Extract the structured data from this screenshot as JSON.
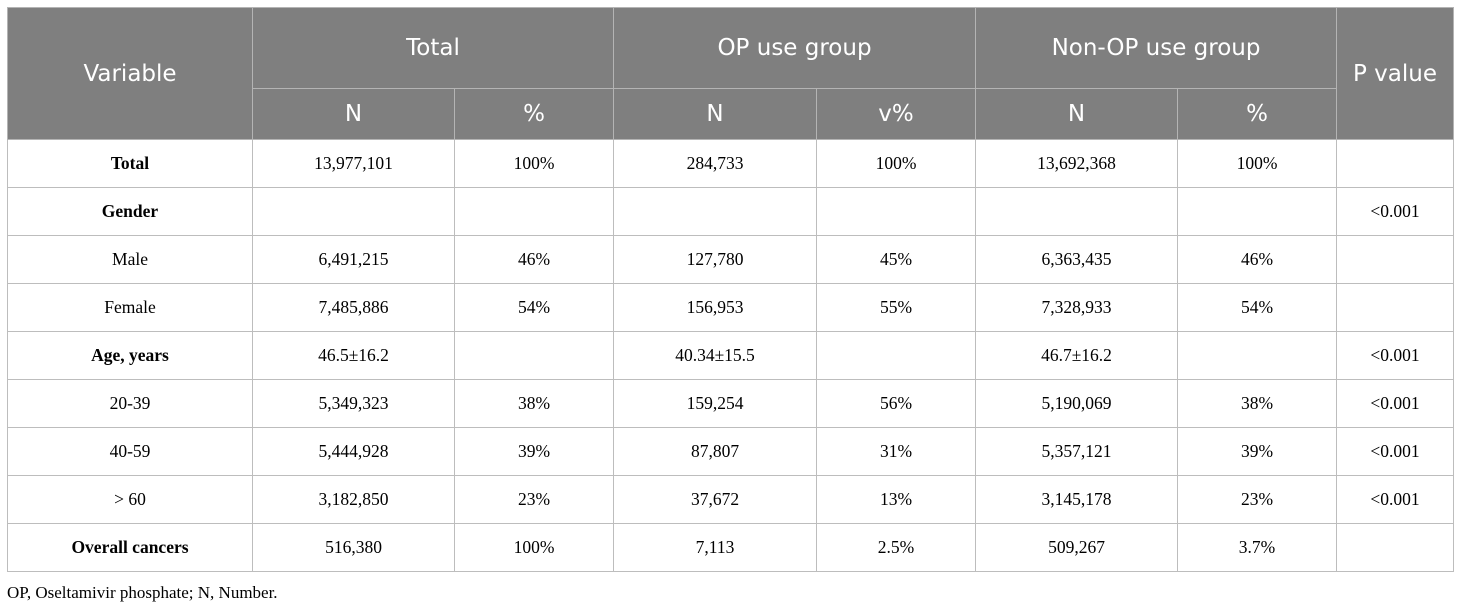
{
  "header": {
    "variable": "Variable",
    "total": "Total",
    "op_use": "OP use group",
    "non_op_use": "Non-OP use group",
    "p_value": "P value",
    "sub": [
      "N",
      "%",
      "N",
      "v%",
      "N",
      "%"
    ]
  },
  "rows": [
    {
      "label": "Total",
      "cells": [
        "13,977,101",
        "100%",
        "284,733",
        "100%",
        "13,692,368",
        "100%",
        ""
      ]
    },
    {
      "label": "Gender",
      "cells": [
        "",
        "",
        "",
        "",
        "",
        "",
        "<0.001"
      ]
    },
    {
      "label": "Male",
      "cells": [
        "6,491,215",
        "46%",
        "127,780",
        "45%",
        "6,363,435",
        "46%",
        ""
      ]
    },
    {
      "label": "Female",
      "cells": [
        "7,485,886",
        "54%",
        "156,953",
        "55%",
        "7,328,933",
        "54%",
        ""
      ]
    },
    {
      "label": "Age, years",
      "cells": [
        "46.5±16.2",
        "",
        "40.34±15.5",
        "",
        "46.7±16.2",
        "",
        "<0.001"
      ]
    },
    {
      "label": "20-39",
      "cells": [
        "5,349,323",
        "38%",
        "159,254",
        "56%",
        "5,190,069",
        "38%",
        "<0.001"
      ]
    },
    {
      "label": "40-59",
      "cells": [
        "5,444,928",
        "39%",
        "87,807",
        "31%",
        "5,357,121",
        "39%",
        "<0.001"
      ]
    },
    {
      "label": "> 60",
      "cells": [
        "3,182,850",
        "23%",
        "37,672",
        "13%",
        "3,145,178",
        "23%",
        "<0.001"
      ]
    },
    {
      "label": "Overall cancers",
      "cells": [
        "516,380",
        "100%",
        "7,113",
        "2.5%",
        "509,267",
        "3.7%",
        ""
      ]
    }
  ],
  "footnote": "OP, Oseltamivir phosphate; N, Number."
}
